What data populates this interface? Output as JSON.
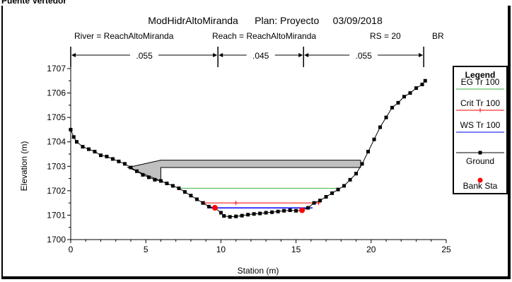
{
  "page": {
    "title": "Puente Vertedor"
  },
  "chart_data": {
    "type": "line",
    "title": "ModHidrAltoMiranda      Plan: Proyecto     03/09/2018",
    "subtitle": {
      "river": "River = ReachAltoMiranda",
      "reach": "Reach = ReachAltoMiranda",
      "rs": "RS = 20",
      "type": "BR"
    },
    "mannings_n": [
      {
        "label": ".055",
        "from": 0,
        "to": 9.8
      },
      {
        "label": ".045",
        "from": 9.8,
        "to": 15.5
      },
      {
        "label": ".055",
        "from": 15.5,
        "to": 23.5
      }
    ],
    "xlabel": "Station (m)",
    "ylabel": "Elevation (m)",
    "xlim": [
      0,
      25
    ],
    "ylim": [
      1700,
      1707
    ],
    "x_ticks": [
      "0",
      "5",
      "10",
      "15",
      "20",
      "25"
    ],
    "y_ticks": [
      "1700",
      "1701",
      "1702",
      "1703",
      "1704",
      "1705",
      "1706",
      "1707"
    ],
    "grid": false,
    "legend": {
      "title": "Legend",
      "entries": [
        "EG  Tr 100",
        "Crit  Tr 100",
        "WS  Tr 100",
        "Ground",
        "Bank Sta"
      ],
      "placement": "right"
    },
    "series": [
      {
        "name": "EG  Tr 100",
        "color": "#3cb043",
        "x": [
          7.3,
          17.7
        ],
        "y": [
          1702.1,
          1702.1
        ]
      },
      {
        "name": "Crit  Tr 100",
        "color": "#ff0000",
        "x": [
          8.9,
          11.0,
          16.5
        ],
        "y": [
          1701.5,
          1701.5,
          1701.5
        ]
      },
      {
        "name": "WS  Tr 100",
        "color": "#0000ff",
        "x": [
          9.3,
          16.1
        ],
        "y": [
          1701.3,
          1701.3
        ]
      },
      {
        "name": "Ground",
        "color": "#000000",
        "x": [
          0.0,
          0.2,
          0.4,
          0.8,
          1.2,
          1.6,
          2.0,
          2.4,
          2.8,
          3.2,
          3.6,
          4.0,
          4.4,
          4.8,
          5.2,
          5.6,
          6.0,
          6.4,
          6.8,
          7.2,
          7.6,
          8.0,
          8.4,
          8.8,
          9.2,
          9.6,
          10.0,
          10.2,
          10.6,
          11.0,
          11.4,
          11.8,
          12.2,
          12.6,
          13.0,
          13.4,
          13.8,
          14.2,
          14.6,
          15.0,
          15.4,
          15.8,
          16.2,
          16.6,
          17.0,
          17.4,
          17.8,
          18.2,
          18.6,
          19.0,
          19.4,
          19.8,
          20.2,
          20.6,
          21.0,
          21.4,
          21.8,
          22.2,
          22.6,
          23.0,
          23.4,
          23.6
        ],
        "y": [
          1704.5,
          1704.2,
          1704.0,
          1703.8,
          1703.7,
          1703.6,
          1703.45,
          1703.4,
          1703.3,
          1703.2,
          1703.1,
          1702.95,
          1702.8,
          1702.65,
          1702.55,
          1702.45,
          1702.4,
          1702.3,
          1702.2,
          1702.1,
          1701.95,
          1701.8,
          1701.65,
          1701.5,
          1701.35,
          1701.3,
          1701.1,
          1700.97,
          1700.93,
          1700.95,
          1700.98,
          1701.02,
          1701.05,
          1701.07,
          1701.1,
          1701.12,
          1701.15,
          1701.18,
          1701.2,
          1701.18,
          1701.2,
          1701.3,
          1701.5,
          1701.6,
          1701.75,
          1701.9,
          1702.05,
          1702.2,
          1702.45,
          1702.7,
          1703.1,
          1703.6,
          1704.1,
          1704.6,
          1705.0,
          1705.4,
          1705.6,
          1705.85,
          1706.0,
          1706.2,
          1706.35,
          1706.5
        ]
      },
      {
        "name": "Bank Sta",
        "color": "#ff0000",
        "x": [
          9.6,
          15.4
        ],
        "y": [
          1701.3,
          1701.2
        ]
      }
    ],
    "bridge": {
      "deck_fill": "#c0c0c0",
      "left_end": 3.8,
      "left_end_elev": 1702.95,
      "left_abutment_station": 6.0,
      "right_end": 19.3,
      "top_chord": 1703.25,
      "low_chord": 1702.95
    }
  }
}
